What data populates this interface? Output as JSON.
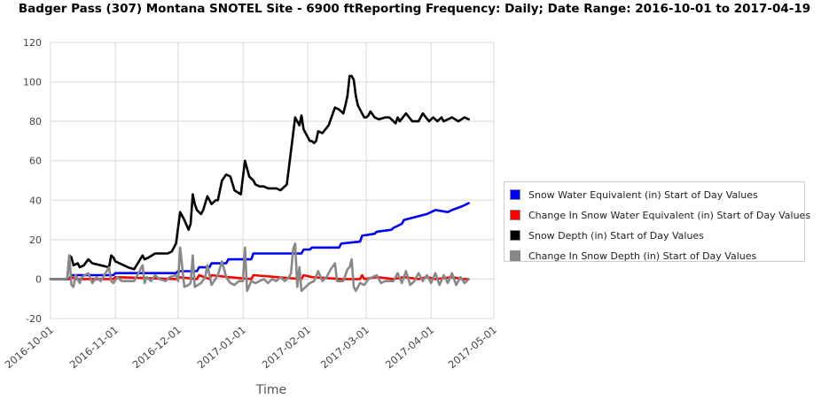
{
  "chart_data": {
    "type": "line",
    "title": "Badger Pass (307) Montana  SNOTEL Site - 6900 ftReporting Frequency: Daily; Date Range: 2016-10-01 to 2017-04-19",
    "xlabel": "Time",
    "ylabel": "",
    "x_ticks": [
      "2016-10-01",
      "2016-11-01",
      "2016-12-01",
      "2017-01-01",
      "2017-02-01",
      "2017-03-01",
      "2017-04-01",
      "2017-05-01"
    ],
    "ylim": [
      -20,
      120
    ],
    "y_ticks": [
      -20,
      0,
      20,
      40,
      60,
      80,
      100,
      120
    ],
    "grid": true,
    "legend_position": "right",
    "series": [
      {
        "name": "Snow Water Equivalent (in) Start of Day Values",
        "color": "#0000ff",
        "x": [
          0,
          9,
          10,
          30,
          31,
          60,
          61,
          70,
          71,
          76,
          77,
          84,
          85,
          96,
          97,
          120,
          121,
          124,
          125,
          138,
          139,
          148,
          149,
          155,
          156,
          163,
          164,
          168,
          169,
          180,
          184,
          190,
          192,
          197,
          200
        ],
        "y": [
          0,
          0,
          2,
          2,
          3,
          3,
          4,
          4,
          6,
          6,
          8,
          8,
          10,
          10,
          13,
          13,
          15,
          15,
          16,
          16,
          18,
          19,
          22,
          23,
          24,
          25,
          26,
          28,
          30,
          33,
          35,
          34,
          35,
          37,
          38.5
        ]
      },
      {
        "name": "Change In Snow Water Equivalent (in) Start of Day Values",
        "color": "#ff0000",
        "x": [
          0,
          9,
          10,
          12,
          30,
          31,
          60,
          61,
          70,
          71,
          76,
          77,
          85,
          96,
          97,
          120,
          121,
          125,
          139,
          148,
          149,
          150,
          156,
          164,
          169,
          176,
          180,
          184,
          192,
          197,
          200
        ],
        "y": [
          0,
          0,
          1,
          0,
          0,
          1,
          0,
          1,
          0,
          2,
          0,
          2,
          1,
          0,
          2,
          0,
          2,
          1,
          0,
          0,
          2,
          0,
          1,
          0,
          1,
          0,
          1,
          0,
          1,
          0,
          0
        ]
      },
      {
        "name": "Snow Depth (in) Start of Day Values",
        "color": "#000000",
        "x": [
          0,
          8,
          9,
          10,
          11,
          13,
          14,
          16,
          18,
          20,
          24,
          28,
          29,
          30,
          31,
          33,
          35,
          37,
          40,
          44,
          45,
          47,
          50,
          52,
          55,
          56,
          58,
          60,
          62,
          64,
          66,
          67,
          68,
          69,
          70,
          72,
          73,
          75,
          77,
          79,
          80,
          82,
          84,
          86,
          88,
          91,
          93,
          95,
          97,
          98,
          100,
          102,
          104,
          106,
          108,
          110,
          113,
          115,
          117,
          119,
          120,
          121,
          123,
          124,
          125,
          126,
          127,
          128,
          130,
          133,
          136,
          138,
          140,
          141,
          142,
          143,
          144,
          145,
          146,
          147,
          148,
          150,
          151,
          152,
          153,
          155,
          157,
          160,
          162,
          164,
          165,
          166,
          167,
          170,
          173,
          176,
          178,
          181,
          183,
          185,
          187,
          188,
          190,
          192,
          195,
          198,
          200
        ],
        "y": [
          0,
          0,
          12,
          11,
          7,
          8,
          6,
          7,
          10,
          8,
          7,
          6,
          12,
          11,
          9,
          8,
          7,
          6,
          5,
          12,
          10,
          11,
          13,
          13,
          13,
          13,
          14,
          18,
          34,
          30,
          25,
          28,
          43,
          38,
          35,
          33,
          35,
          42,
          38,
          40,
          40,
          50,
          53,
          52,
          45,
          43,
          60,
          52,
          50,
          48,
          47,
          47,
          46,
          46,
          46,
          45,
          48,
          65,
          82,
          78,
          83,
          76,
          72,
          70,
          70,
          69,
          70,
          75,
          74,
          78,
          87,
          86,
          84,
          88,
          93,
          103,
          103,
          101,
          93,
          88,
          86,
          82,
          82,
          83,
          85,
          82,
          81,
          82,
          82,
          80,
          79,
          82,
          80,
          84,
          80,
          80,
          84,
          80,
          82,
          80,
          82,
          80,
          81,
          82,
          80,
          82,
          81
        ]
      },
      {
        "name": "Change In Snow Depth (in) Start of Day Values",
        "color": "#888888",
        "x": [
          0,
          8,
          9,
          10,
          11,
          12,
          14,
          15,
          18,
          20,
          22,
          24,
          28,
          29,
          30,
          32,
          34,
          36,
          40,
          44,
          45,
          46,
          48,
          50,
          52,
          55,
          57,
          60,
          61,
          62,
          64,
          66,
          67,
          68,
          69,
          72,
          74,
          75,
          77,
          80,
          82,
          84,
          86,
          88,
          90,
          92,
          93,
          94,
          96,
          98,
          100,
          102,
          104,
          106,
          108,
          110,
          112,
          114,
          115,
          116,
          117,
          118,
          119,
          120,
          122,
          124,
          126,
          128,
          130,
          132,
          134,
          136,
          137,
          138,
          140,
          142,
          143,
          144,
          145,
          146,
          148,
          150,
          152,
          154,
          156,
          158,
          160,
          162,
          164,
          166,
          168,
          170,
          172,
          174,
          176,
          178,
          180,
          182,
          184,
          186,
          188,
          190,
          192,
          194,
          196,
          198,
          200
        ],
        "y": [
          0,
          0,
          12,
          -3,
          -4,
          2,
          -2,
          1,
          3,
          -2,
          1,
          -1,
          6,
          -1,
          -2,
          1,
          -1,
          -1,
          -1,
          7,
          -2,
          1,
          -1,
          2,
          0,
          -1,
          1,
          2,
          -1,
          16,
          -4,
          -3,
          -2,
          12,
          -4,
          -2,
          1,
          7,
          -3,
          2,
          9,
          1,
          -2,
          -3,
          -1,
          -1,
          16,
          -6,
          -1,
          -2,
          -1,
          0,
          -2,
          0,
          -1,
          1,
          -1,
          1,
          3,
          15,
          18,
          -4,
          6,
          -6,
          -4,
          -2,
          -1,
          4,
          -1,
          1,
          5,
          8,
          -1,
          -1,
          -1,
          5,
          6,
          10,
          -4,
          -6,
          -2,
          -3,
          0,
          1,
          2,
          -2,
          -1,
          -1,
          -1,
          3,
          -2,
          4,
          -3,
          -1,
          3,
          -1,
          2,
          -2,
          3,
          -3,
          2,
          -2,
          3,
          -3,
          1,
          -2,
          0
        ]
      }
    ]
  }
}
